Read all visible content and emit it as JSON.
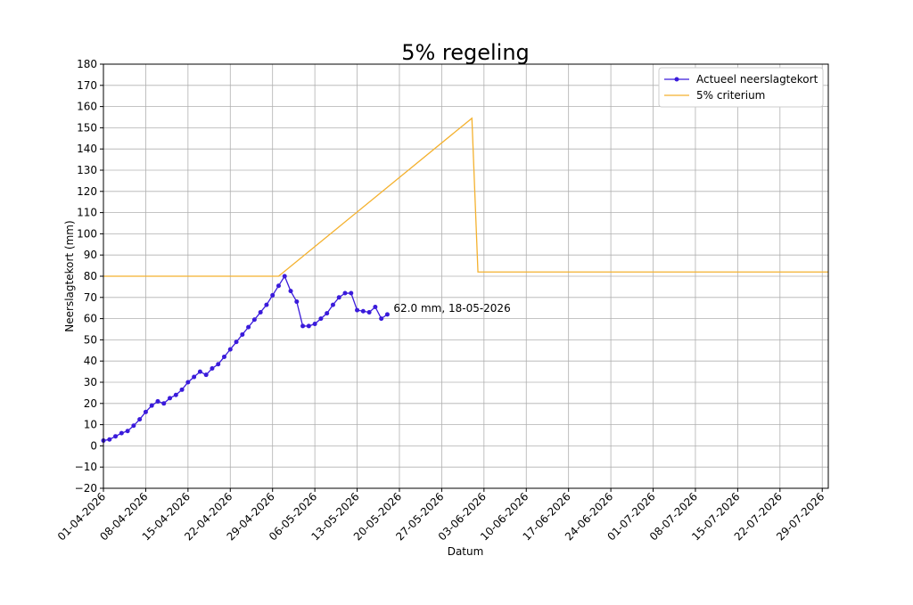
{
  "chart_data": {
    "type": "line",
    "title": "5% regeling",
    "xlabel": "Datum",
    "ylabel": "Neerslagtekort (mm)",
    "x_axis_type": "date",
    "xlim": [
      "2026-04-01",
      "2026-07-30"
    ],
    "ylim": [
      -20,
      180
    ],
    "y_ticks": [
      -20,
      -10,
      0,
      10,
      20,
      30,
      40,
      50,
      60,
      70,
      80,
      90,
      100,
      110,
      120,
      130,
      140,
      150,
      160,
      170,
      180
    ],
    "y_tick_labels": [
      "−20",
      "−10",
      "0",
      "10",
      "20",
      "30",
      "40",
      "50",
      "60",
      "70",
      "80",
      "90",
      "100",
      "110",
      "120",
      "130",
      "140",
      "150",
      "160",
      "170",
      "180"
    ],
    "x_tick_dates": [
      "2026-04-01",
      "2026-04-08",
      "2026-04-15",
      "2026-04-22",
      "2026-04-29",
      "2026-05-06",
      "2026-05-13",
      "2026-05-20",
      "2026-05-27",
      "2026-06-03",
      "2026-06-10",
      "2026-06-17",
      "2026-06-24",
      "2026-07-01",
      "2026-07-08",
      "2026-07-15",
      "2026-07-22",
      "2026-07-29"
    ],
    "x_tick_labels": [
      "01-04-2026",
      "08-04-2026",
      "15-04-2026",
      "22-04-2026",
      "29-04-2026",
      "06-05-2026",
      "13-05-2026",
      "20-05-2026",
      "27-05-2026",
      "03-06-2026",
      "10-06-2026",
      "17-06-2026",
      "24-06-2026",
      "01-07-2026",
      "08-07-2026",
      "15-07-2026",
      "22-07-2026",
      "29-07-2026"
    ],
    "grid": true,
    "legend_position": "top-right",
    "series": [
      {
        "name": "Actueel neerslagtekort",
        "color": "#3a1bdb",
        "marker": "circle",
        "x": [
          "2026-04-01",
          "2026-04-02",
          "2026-04-03",
          "2026-04-04",
          "2026-04-05",
          "2026-04-06",
          "2026-04-07",
          "2026-04-08",
          "2026-04-09",
          "2026-04-10",
          "2026-04-11",
          "2026-04-12",
          "2026-04-13",
          "2026-04-14",
          "2026-04-15",
          "2026-04-16",
          "2026-04-17",
          "2026-04-18",
          "2026-04-19",
          "2026-04-20",
          "2026-04-21",
          "2026-04-22",
          "2026-04-23",
          "2026-04-24",
          "2026-04-25",
          "2026-04-26",
          "2026-04-27",
          "2026-04-28",
          "2026-04-29",
          "2026-04-30",
          "2026-05-01",
          "2026-05-02",
          "2026-05-03",
          "2026-05-04",
          "2026-05-05",
          "2026-05-06",
          "2026-05-07",
          "2026-05-08",
          "2026-05-09",
          "2026-05-10",
          "2026-05-11",
          "2026-05-12",
          "2026-05-13",
          "2026-05-14",
          "2026-05-15",
          "2026-05-16",
          "2026-05-17",
          "2026-05-18"
        ],
        "y": [
          2.5,
          3.0,
          4.5,
          6.0,
          7.0,
          9.5,
          12.5,
          16.0,
          19.0,
          21.0,
          20.0,
          22.5,
          24.0,
          26.5,
          30.0,
          32.5,
          35.0,
          33.5,
          36.5,
          38.5,
          42.0,
          45.5,
          49.0,
          52.5,
          56.0,
          59.5,
          63.0,
          66.5,
          71.0,
          75.5,
          80.0,
          73.0,
          68.0,
          56.5,
          56.5,
          57.5,
          60.0,
          62.5,
          66.5,
          70.0,
          72.0,
          72.0,
          64.0,
          63.5,
          63.0,
          65.5,
          60.0,
          62.0
        ]
      },
      {
        "name": "5% criterium",
        "color": "#f4b12e",
        "marker": "none",
        "x": [
          "2026-04-01",
          "2026-04-30",
          "2026-06-01",
          "2026-06-02",
          "2026-07-30"
        ],
        "y": [
          80,
          80,
          154.5,
          82,
          82
        ]
      }
    ],
    "annotations": [
      {
        "text": "62.0 mm, 18-05-2026",
        "x": "2026-05-18",
        "y": 62.0
      }
    ]
  }
}
